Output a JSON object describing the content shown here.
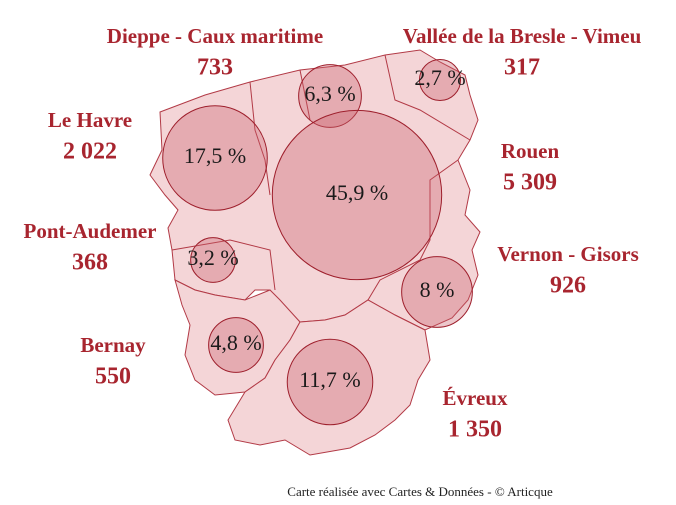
{
  "map": {
    "regions": [
      {
        "name": "Dieppe - Caux maritime",
        "value": 733,
        "share": 6.3,
        "share_label": "6,3 %"
      },
      {
        "name": "Vallée de la Bresle - Vimeu",
        "value": 317,
        "share": 2.7,
        "share_label": "2,7 %"
      },
      {
        "name": "Le Havre",
        "value": 2022,
        "value_label": "2 022",
        "share": 17.5,
        "share_label": "17,5 %"
      },
      {
        "name": "Rouen",
        "value": 5309,
        "value_label": "5 309",
        "share": 45.9,
        "share_label": "45,9 %"
      },
      {
        "name": "Pont-Audemer",
        "value": 368,
        "share": 3.2,
        "share_label": "3,2 %"
      },
      {
        "name": "Vernon - Gisors",
        "value": 926,
        "share": 8,
        "share_label": "8 %"
      },
      {
        "name": "Bernay",
        "value": 550,
        "share": 4.8,
        "share_label": "4,8 %"
      },
      {
        "name": "Évreux",
        "value": 1350,
        "value_label": "1 350",
        "share": 11.7,
        "share_label": "11,7 %"
      }
    ],
    "credit": "Carte réalisée avec Cartes & Données - © Articque"
  }
}
